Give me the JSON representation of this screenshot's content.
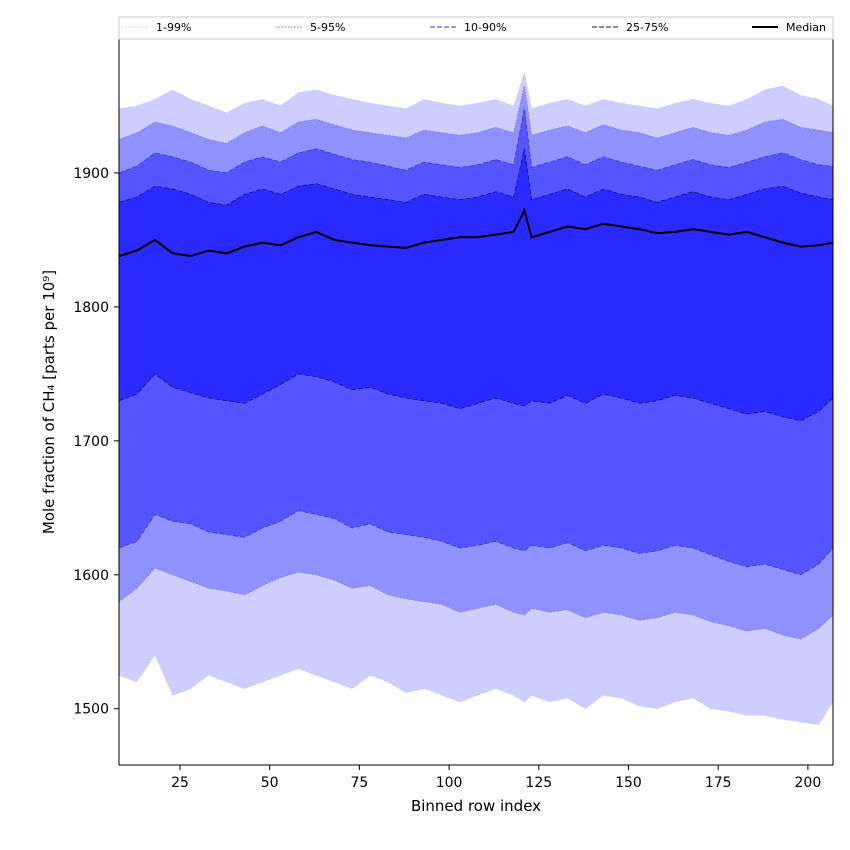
{
  "chart_data": {
    "type": "area",
    "xlabel": "Binned row index",
    "ylabel": "Mole fraction of CH₄ [parts per 10⁹]",
    "xlim": [
      8,
      207
    ],
    "ylim": [
      1458,
      2000
    ],
    "xticks": [
      25,
      50,
      75,
      100,
      125,
      150,
      175,
      200
    ],
    "yticks": [
      1500,
      1600,
      1700,
      1800,
      1900
    ],
    "grid": false,
    "legend_position": "top",
    "x": [
      8,
      13,
      18,
      23,
      28,
      33,
      38,
      43,
      48,
      53,
      58,
      63,
      68,
      73,
      78,
      83,
      88,
      93,
      98,
      103,
      108,
      113,
      118,
      121,
      123,
      128,
      133,
      138,
      143,
      148,
      153,
      158,
      163,
      168,
      173,
      178,
      183,
      188,
      193,
      198,
      203,
      207
    ],
    "series": [
      {
        "name": "1-99%",
        "style": "dotted",
        "line_color": "#c8c8f0",
        "fill": "#cdcdff",
        "lower": [
          1525,
          1520,
          1540,
          1510,
          1515,
          1525,
          1520,
          1515,
          1520,
          1525,
          1530,
          1525,
          1520,
          1515,
          1525,
          1520,
          1512,
          1515,
          1510,
          1505,
          1510,
          1515,
          1510,
          1505,
          1510,
          1505,
          1508,
          1500,
          1510,
          1508,
          1502,
          1500,
          1505,
          1508,
          1500,
          1498,
          1495,
          1495,
          1492,
          1490,
          1488,
          1505
        ],
        "upper": [
          1948,
          1950,
          1955,
          1962,
          1955,
          1950,
          1945,
          1952,
          1955,
          1950,
          1960,
          1962,
          1958,
          1955,
          1952,
          1950,
          1948,
          1955,
          1952,
          1950,
          1952,
          1955,
          1950,
          1975,
          1948,
          1952,
          1955,
          1950,
          1955,
          1952,
          1950,
          1948,
          1952,
          1955,
          1952,
          1950,
          1955,
          1962,
          1965,
          1958,
          1955,
          1950
        ]
      },
      {
        "name": "5-95%",
        "style": "dotted",
        "line_color": "#7070d8",
        "fill": "#9090ff",
        "lower": [
          1580,
          1590,
          1605,
          1600,
          1595,
          1590,
          1588,
          1585,
          1592,
          1598,
          1602,
          1600,
          1596,
          1590,
          1592,
          1585,
          1582,
          1580,
          1578,
          1572,
          1575,
          1578,
          1572,
          1570,
          1575,
          1572,
          1574,
          1568,
          1572,
          1570,
          1566,
          1568,
          1572,
          1570,
          1565,
          1562,
          1558,
          1560,
          1555,
          1552,
          1560,
          1570
        ],
        "upper": [
          1925,
          1930,
          1938,
          1935,
          1930,
          1925,
          1922,
          1930,
          1935,
          1930,
          1938,
          1940,
          1936,
          1932,
          1930,
          1928,
          1926,
          1932,
          1930,
          1928,
          1930,
          1934,
          1930,
          1965,
          1928,
          1932,
          1935,
          1930,
          1936,
          1932,
          1930,
          1926,
          1930,
          1934,
          1930,
          1928,
          1932,
          1938,
          1940,
          1934,
          1932,
          1930
        ]
      },
      {
        "name": "10-90%",
        "style": "dashed",
        "line_color": "#3a3ab0",
        "fill": "#5555ff",
        "lower": [
          1620,
          1625,
          1645,
          1640,
          1638,
          1632,
          1630,
          1628,
          1635,
          1640,
          1648,
          1645,
          1642,
          1635,
          1638,
          1632,
          1630,
          1628,
          1625,
          1620,
          1622,
          1625,
          1620,
          1618,
          1622,
          1620,
          1624,
          1618,
          1622,
          1620,
          1616,
          1618,
          1622,
          1620,
          1615,
          1610,
          1606,
          1608,
          1604,
          1600,
          1608,
          1620
        ],
        "upper": [
          1900,
          1905,
          1915,
          1912,
          1908,
          1902,
          1900,
          1908,
          1912,
          1908,
          1915,
          1918,
          1914,
          1910,
          1908,
          1905,
          1902,
          1908,
          1906,
          1904,
          1906,
          1910,
          1906,
          1948,
          1904,
          1908,
          1912,
          1906,
          1912,
          1908,
          1905,
          1902,
          1906,
          1910,
          1906,
          1904,
          1908,
          1912,
          1915,
          1910,
          1906,
          1905
        ]
      },
      {
        "name": "25-75%",
        "style": "dashed",
        "line_color": "#101080",
        "fill": "#2a2aff",
        "lower": [
          1730,
          1735,
          1750,
          1740,
          1736,
          1732,
          1730,
          1728,
          1735,
          1742,
          1750,
          1748,
          1744,
          1738,
          1740,
          1735,
          1732,
          1730,
          1728,
          1724,
          1728,
          1732,
          1728,
          1726,
          1730,
          1728,
          1734,
          1728,
          1735,
          1732,
          1728,
          1730,
          1734,
          1732,
          1728,
          1724,
          1720,
          1722,
          1718,
          1715,
          1722,
          1732
        ],
        "upper": [
          1878,
          1882,
          1890,
          1888,
          1884,
          1878,
          1876,
          1884,
          1888,
          1884,
          1890,
          1892,
          1888,
          1884,
          1882,
          1880,
          1878,
          1884,
          1882,
          1880,
          1882,
          1886,
          1882,
          1918,
          1880,
          1884,
          1888,
          1882,
          1888,
          1884,
          1882,
          1878,
          1882,
          1886,
          1882,
          1880,
          1884,
          1888,
          1890,
          1885,
          1882,
          1880
        ]
      },
      {
        "name": "Median",
        "style": "solid",
        "line_color": "#000000",
        "values": [
          1838,
          1842,
          1850,
          1840,
          1838,
          1842,
          1840,
          1845,
          1848,
          1846,
          1852,
          1856,
          1850,
          1848,
          1846,
          1845,
          1844,
          1848,
          1850,
          1852,
          1852,
          1854,
          1856,
          1872,
          1852,
          1856,
          1860,
          1858,
          1862,
          1860,
          1858,
          1855,
          1856,
          1858,
          1856,
          1854,
          1856,
          1852,
          1848,
          1845,
          1846,
          1848
        ]
      }
    ]
  }
}
